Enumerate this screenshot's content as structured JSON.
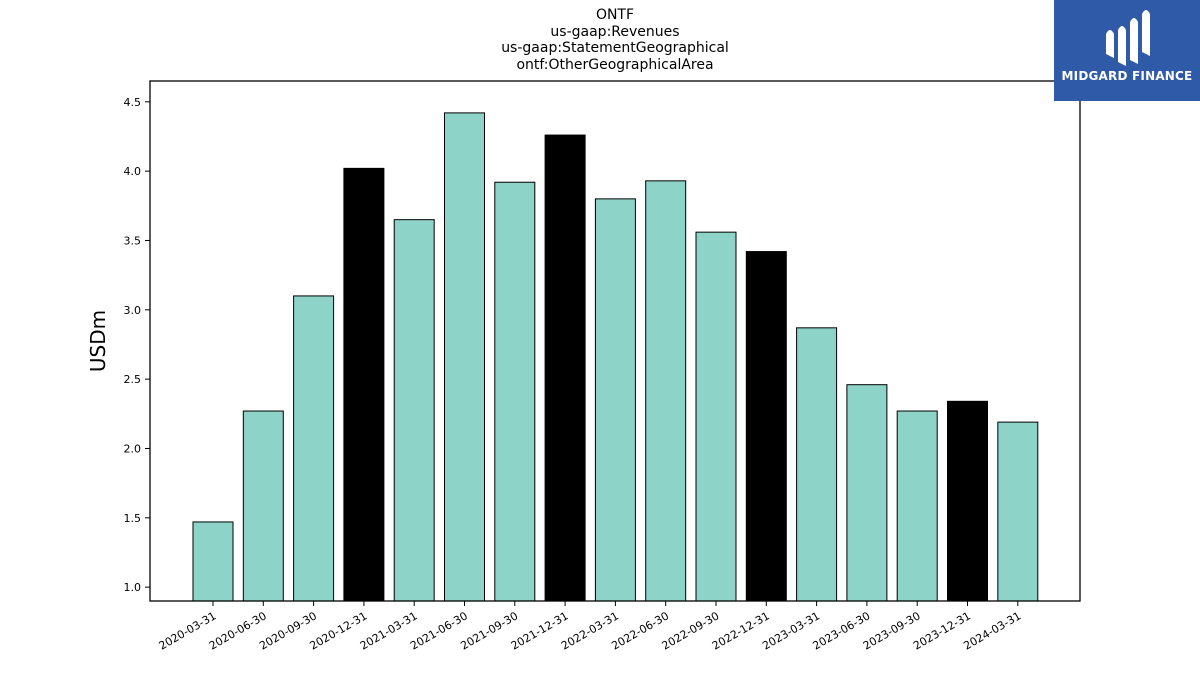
{
  "chart_data": {
    "type": "bar",
    "title_lines": [
      "ONTF",
      "us-gaap:Revenues",
      "us-gaap:StatementGeographical",
      "ontf:OtherGeographicalArea"
    ],
    "ylabel": "USDm",
    "xlabel": "",
    "ylim": [
      0.9,
      4.65
    ],
    "yticks": [
      1.0,
      1.5,
      2.0,
      2.5,
      3.0,
      3.5,
      4.0,
      4.5
    ],
    "ytick_labels": [
      "1.0",
      "1.5",
      "2.0",
      "2.5",
      "3.0",
      "3.5",
      "4.0",
      "4.5"
    ],
    "categories": [
      "2020-03-31",
      "2020-06-30",
      "2020-09-30",
      "2020-12-31",
      "2021-03-31",
      "2021-06-30",
      "2021-09-30",
      "2021-12-31",
      "2022-03-31",
      "2022-06-30",
      "2022-09-30",
      "2022-12-31",
      "2023-03-31",
      "2023-06-30",
      "2023-09-30",
      "2023-12-31",
      "2024-03-31"
    ],
    "values": [
      1.47,
      2.27,
      3.1,
      4.02,
      3.65,
      4.42,
      3.92,
      4.26,
      3.8,
      3.93,
      3.56,
      3.42,
      2.87,
      2.46,
      2.27,
      2.34,
      2.19
    ],
    "highlight": [
      false,
      false,
      false,
      true,
      false,
      false,
      false,
      true,
      false,
      false,
      false,
      true,
      false,
      false,
      false,
      true,
      false
    ],
    "colors": {
      "bar": "#8dd3c7",
      "highlight": "#000000",
      "edge": "#000000"
    },
    "grid": false,
    "legend": "none"
  },
  "logo": {
    "text": "MIDGARD FINANCE",
    "background": "#2f5aa8"
  }
}
